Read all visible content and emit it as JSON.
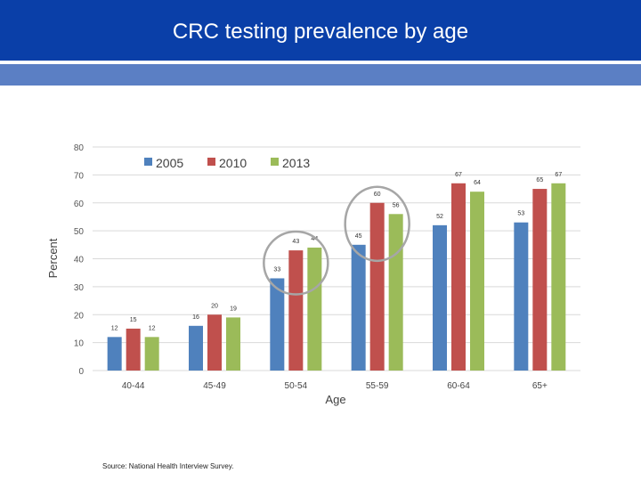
{
  "slide": {
    "title": "CRC testing prevalence by age",
    "source": "Source: National Health Interview Survey."
  },
  "colors": {
    "banner": "#0a3fa8",
    "band": "#5b7fc4",
    "highlight_circle": "#a6a6a6"
  },
  "chart_data": {
    "type": "bar",
    "title": "",
    "xlabel": "Age",
    "ylabel": "Percent",
    "ylim": [
      0,
      80
    ],
    "yticks": [
      0,
      10,
      20,
      30,
      40,
      50,
      60,
      70,
      80
    ],
    "grid": true,
    "legend_position": "top-left",
    "categories": [
      "40-44",
      "45-49",
      "50-54",
      "55-59",
      "60-64",
      "65+"
    ],
    "series": [
      {
        "name": "2005",
        "color": "#4f81bd",
        "values": [
          12,
          16,
          33,
          45,
          52,
          53
        ],
        "labels": [
          "12",
          "16",
          "33",
          "45",
          "52",
          "53"
        ]
      },
      {
        "name": "2010",
        "color": "#c0504d",
        "values": [
          15,
          20,
          43,
          60,
          67,
          65
        ],
        "labels": [
          "15",
          "20",
          "43",
          "60",
          "67",
          "65"
        ]
      },
      {
        "name": "2013",
        "color": "#9bbb59",
        "values": [
          12,
          19,
          44,
          56,
          64,
          67
        ],
        "labels": [
          "12",
          "19",
          "44",
          "56",
          "64",
          "67"
        ]
      }
    ],
    "highlighted_categories": [
      "50-54",
      "55-59"
    ]
  }
}
